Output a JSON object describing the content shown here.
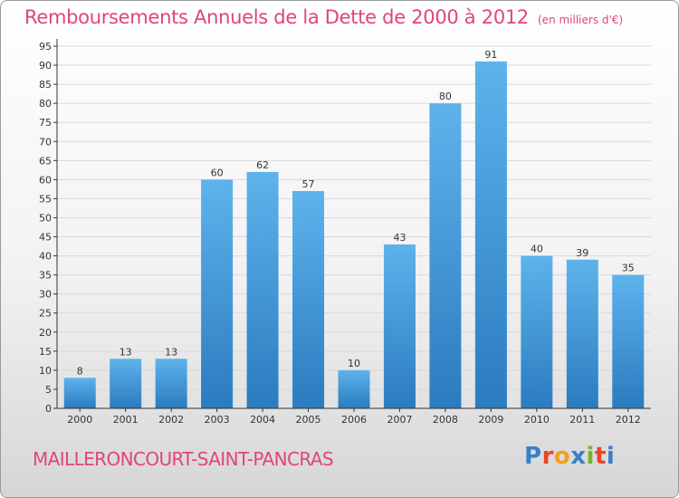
{
  "header": {
    "title": "Remboursements Annuels de la Dette de 2000 à 2012",
    "unit": "(en milliers d'€)"
  },
  "footer": {
    "commune": "MAILLERONCOURT-SAINT-PANCRAS",
    "logo_letters": [
      "P",
      "r",
      "o",
      "x",
      "i",
      "t",
      "i"
    ],
    "logo_colors": [
      "#3a7fc8",
      "#e8452a",
      "#f2a01a",
      "#3a7fc8",
      "#7ab52a",
      "#e8452a",
      "#3a7fc8"
    ]
  },
  "colors": {
    "bar_top": "#5eb3ec",
    "bar_bottom": "#2b7bbf",
    "axis": "#333333",
    "grid": "#d9d9d9",
    "text": "#333333",
    "accent": "#e0457b"
  },
  "chart_data": {
    "type": "bar",
    "title": "Remboursements Annuels de la Dette de 2000 à 2012",
    "xlabel": "",
    "ylabel": "(en milliers d'€)",
    "categories": [
      "2000",
      "2001",
      "2002",
      "2003",
      "2004",
      "2005",
      "2006",
      "2007",
      "2008",
      "2009",
      "2010",
      "2011",
      "2012"
    ],
    "values": [
      8,
      13,
      13,
      60,
      62,
      57,
      10,
      43,
      80,
      91,
      40,
      39,
      35
    ],
    "ylim": [
      0,
      95
    ],
    "yticks": [
      0,
      5,
      10,
      15,
      20,
      25,
      30,
      35,
      40,
      45,
      50,
      55,
      60,
      65,
      70,
      75,
      80,
      85,
      90,
      95
    ],
    "grid": true
  }
}
